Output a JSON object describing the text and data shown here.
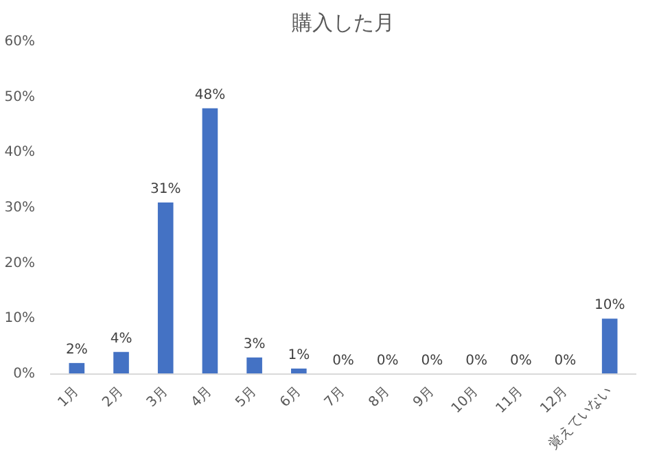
{
  "chart_data": {
    "type": "bar",
    "title": "購入した月",
    "categories": [
      "1月",
      "2月",
      "3月",
      "4月",
      "5月",
      "6月",
      "7月",
      "8月",
      "9月",
      "10月",
      "11月",
      "12月",
      "覚えていない"
    ],
    "values": [
      2,
      4,
      31,
      48,
      3,
      1,
      0,
      0,
      0,
      0,
      0,
      0,
      10
    ],
    "value_labels": [
      "2%",
      "4%",
      "31%",
      "48%",
      "3%",
      "1%",
      "0%",
      "0%",
      "0%",
      "0%",
      "0%",
      "0%",
      "10%"
    ],
    "color": "#4472c4",
    "ylim": [
      0,
      60
    ],
    "yticks": [
      {
        "value": 0,
        "label": "0%"
      },
      {
        "value": 10,
        "label": "10%"
      },
      {
        "value": 20,
        "label": "20%"
      },
      {
        "value": 30,
        "label": "30%"
      },
      {
        "value": 40,
        "label": "40%"
      },
      {
        "value": 50,
        "label": "50%"
      },
      {
        "value": 60,
        "label": "60%"
      }
    ],
    "grid": false
  }
}
